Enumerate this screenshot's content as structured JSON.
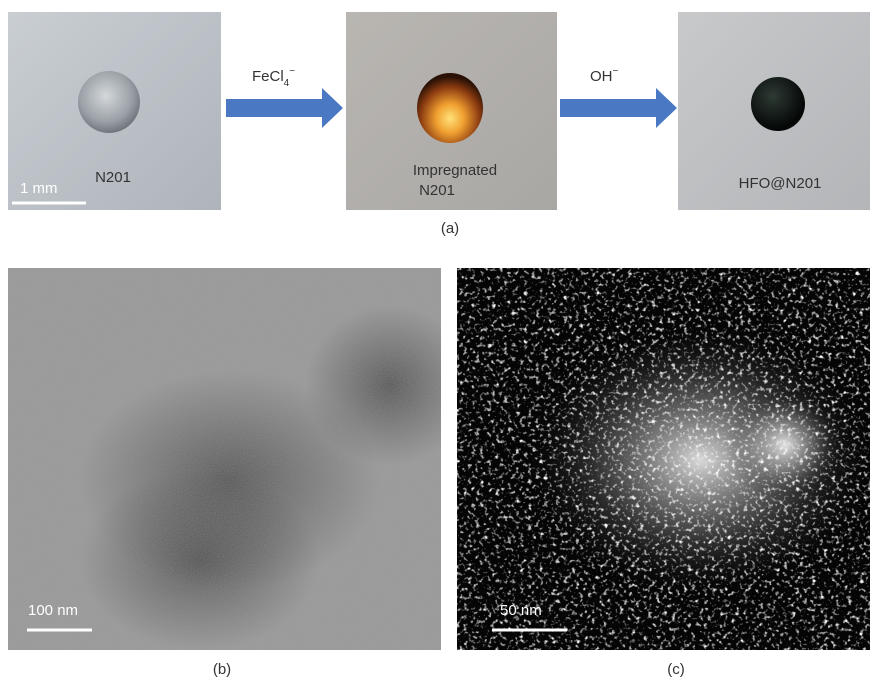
{
  "panel_a": {
    "photo_1": {
      "label": "N201",
      "scale": "1 mm"
    },
    "arrow_1": {
      "base": "FeCl",
      "sub": "4",
      "sup": "−"
    },
    "photo_2": {
      "label_lines": [
        "Impregnated",
        "N201"
      ]
    },
    "arrow_2": {
      "base": "OH",
      "sup": "−"
    },
    "photo_3": {
      "label": "HFO@N201"
    },
    "caption": "(a)"
  },
  "panel_b": {
    "scale": "100 nm",
    "caption": "(b)"
  },
  "panel_c": {
    "scale": "50 nm",
    "caption": "(c)"
  }
}
